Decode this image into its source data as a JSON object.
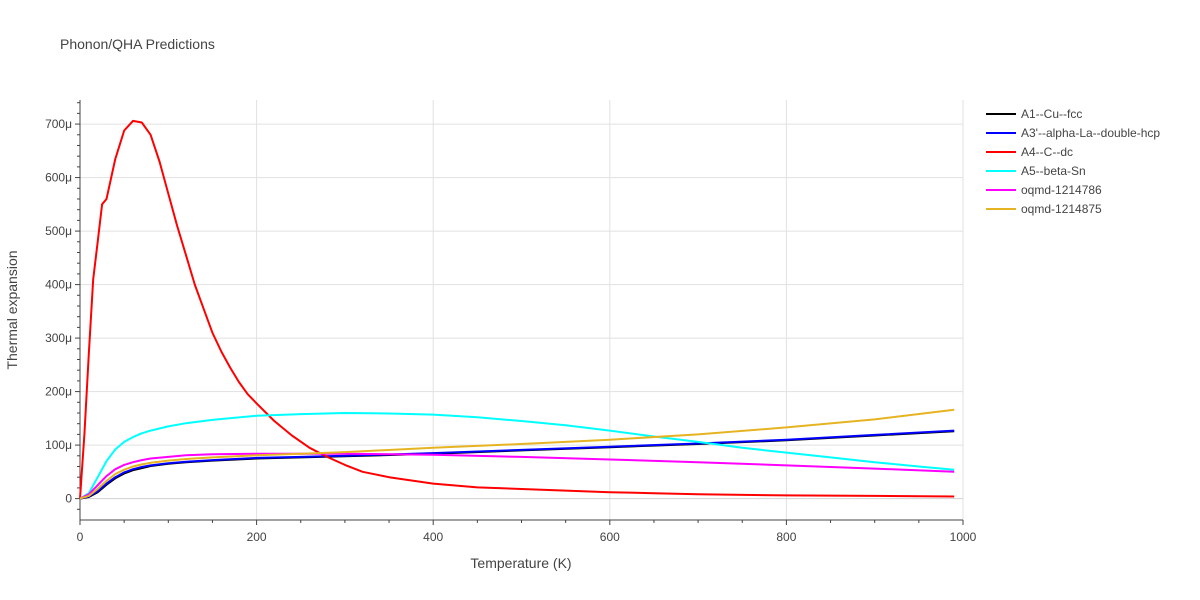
{
  "chart_data": {
    "type": "line",
    "title": "Phonon/QHA Predictions",
    "xlabel": "Temperature (K)",
    "ylabel": "Thermal expansion",
    "xlim": [
      0,
      1000
    ],
    "ylim": [
      -40,
      745
    ],
    "x_ticks": [
      0,
      200,
      400,
      600,
      800,
      1000
    ],
    "x_tick_labels": [
      "0",
      "200",
      "400",
      "600",
      "800",
      "1000"
    ],
    "y_ticks": [
      0,
      100,
      200,
      300,
      400,
      500,
      600,
      700
    ],
    "y_tick_labels": [
      "0",
      "100μ",
      "200μ",
      "300μ",
      "400μ",
      "500μ",
      "600μ",
      "700μ"
    ],
    "grid": true,
    "legend_position": "right",
    "series": [
      {
        "name": "A1--Cu--fcc",
        "color": "#000000",
        "x": [
          0,
          10,
          20,
          30,
          40,
          50,
          60,
          70,
          80,
          100,
          120,
          150,
          200,
          250,
          300,
          400,
          500,
          600,
          700,
          800,
          900,
          990
        ],
        "y": [
          0,
          3,
          12,
          26,
          38,
          47,
          53,
          57,
          61,
          65,
          68,
          71,
          75,
          77,
          79,
          84,
          90,
          96,
          102,
          109,
          118,
          126
        ]
      },
      {
        "name": "A3'--alpha-La--double-hcp",
        "color": "#0000ff",
        "x": [
          0,
          10,
          20,
          30,
          40,
          50,
          60,
          70,
          80,
          100,
          120,
          150,
          200,
          250,
          300,
          400,
          500,
          600,
          700,
          800,
          900,
          990
        ],
        "y": [
          0,
          4,
          14,
          28,
          40,
          49,
          55,
          59,
          62,
          66,
          69,
          72,
          76,
          78,
          80,
          85,
          91,
          97,
          103,
          110,
          119,
          127
        ]
      },
      {
        "name": "A4--C--dc",
        "color": "#ff0000",
        "x": [
          0,
          5,
          10,
          15,
          20,
          25,
          30,
          40,
          50,
          60,
          70,
          80,
          90,
          100,
          110,
          120,
          130,
          140,
          150,
          160,
          170,
          180,
          190,
          200,
          220,
          240,
          260,
          280,
          300,
          320,
          350,
          400,
          450,
          500,
          550,
          600,
          650,
          700,
          800,
          900,
          990
        ],
        "y": [
          0,
          120,
          270,
          410,
          480,
          550,
          560,
          635,
          688,
          706,
          703,
          680,
          630,
          570,
          510,
          455,
          400,
          355,
          310,
          275,
          245,
          218,
          195,
          178,
          145,
          118,
          95,
          78,
          63,
          50,
          40,
          28,
          21,
          18,
          15,
          12,
          10,
          8,
          6,
          5,
          4
        ]
      },
      {
        "name": "A5--beta-Sn",
        "color": "#00ffff",
        "x": [
          0,
          10,
          20,
          30,
          40,
          50,
          60,
          70,
          80,
          100,
          120,
          150,
          200,
          250,
          300,
          350,
          400,
          450,
          500,
          550,
          600,
          650,
          700,
          750,
          800,
          850,
          900,
          950,
          990
        ],
        "y": [
          0,
          10,
          40,
          70,
          92,
          106,
          115,
          122,
          127,
          135,
          141,
          147,
          155,
          158,
          160,
          159,
          157,
          152,
          145,
          137,
          127,
          116,
          106,
          95,
          86,
          77,
          68,
          60,
          54
        ]
      },
      {
        "name": "oqmd-1214786",
        "color": "#ff00ff",
        "x": [
          0,
          10,
          20,
          30,
          40,
          50,
          60,
          70,
          80,
          100,
          120,
          150,
          200,
          250,
          300,
          400,
          500,
          600,
          700,
          800,
          900,
          990
        ],
        "y": [
          0,
          8,
          25,
          42,
          55,
          63,
          68,
          72,
          75,
          78,
          81,
          83,
          84,
          84,
          84,
          82,
          78,
          73,
          68,
          62,
          56,
          50
        ]
      },
      {
        "name": "oqmd-1214875",
        "color": "#e6b422",
        "x": [
          0,
          10,
          20,
          30,
          40,
          50,
          60,
          70,
          80,
          100,
          120,
          150,
          200,
          250,
          300,
          400,
          500,
          600,
          700,
          800,
          900,
          990
        ],
        "y": [
          0,
          5,
          18,
          33,
          46,
          54,
          60,
          64,
          67,
          71,
          74,
          77,
          81,
          84,
          87,
          95,
          102,
          110,
          120,
          133,
          148,
          166
        ]
      }
    ]
  }
}
